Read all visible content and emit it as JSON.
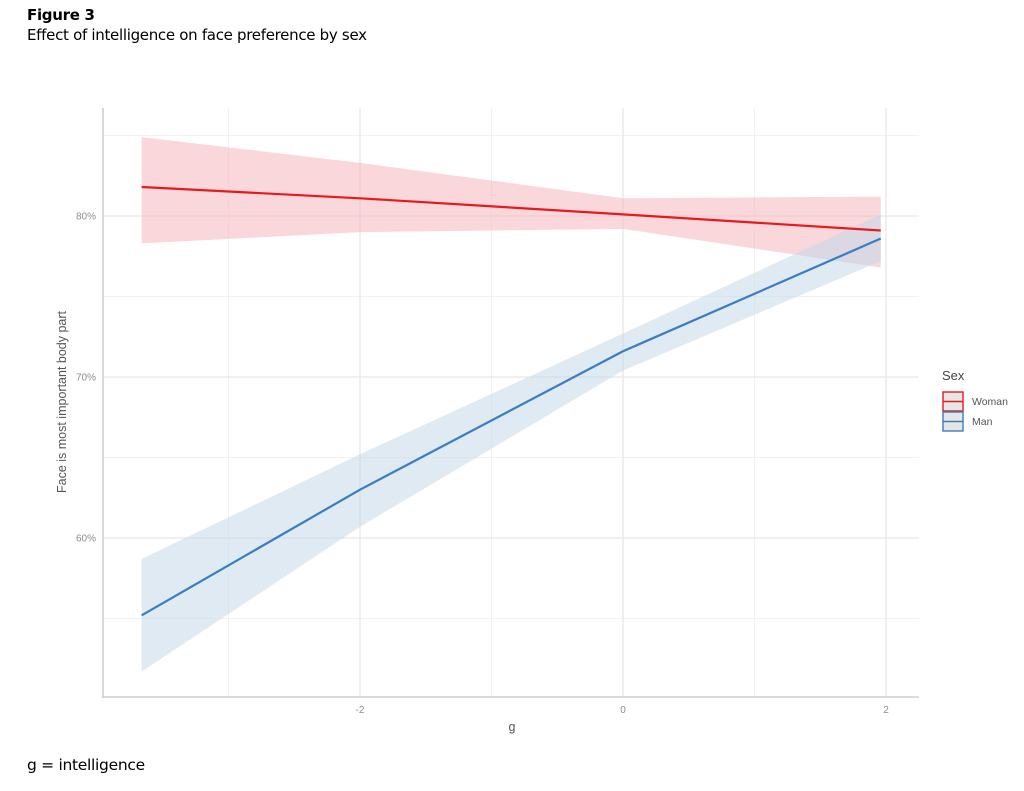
{
  "figure": {
    "label": "Figure 3",
    "title": "Effect of intelligence on face preference by sex",
    "footnote": "g = intelligence"
  },
  "chart_data": {
    "type": "line",
    "title": "Effect of intelligence on face preference by sex",
    "xlabel": "g",
    "ylabel": "Face is most important body part",
    "xlim": [
      -4.0,
      2.25
    ],
    "ylim": [
      50.0,
      88.0
    ],
    "x_ticks": [
      -2,
      0,
      2
    ],
    "x_tick_labels": [
      "-2",
      "0",
      "2"
    ],
    "x_minor_ticks": [
      -3,
      -1,
      1
    ],
    "y_ticks": [
      60,
      70,
      80
    ],
    "y_tick_labels": [
      "60%",
      "70%",
      "80%"
    ],
    "y_minor_ticks": [
      55,
      65,
      75,
      85
    ],
    "grid": true,
    "legend": {
      "title": "Sex",
      "position": "right",
      "entries": [
        "Woman",
        "Man"
      ]
    },
    "x": [
      -3.66,
      -2,
      0,
      1.96
    ],
    "series": [
      {
        "name": "Woman",
        "color": "#e41a1c",
        "fill": "#f4b6bd",
        "values": [
          81.8,
          81.1,
          80.1,
          79.1
        ],
        "ci_upper": [
          84.9,
          83.3,
          81.1,
          81.2
        ],
        "ci_lower": [
          78.3,
          79.0,
          79.2,
          76.8
        ]
      },
      {
        "name": "Man",
        "color": "#3a7dc0",
        "fill": "#c5d9ea",
        "values": [
          55.2,
          63.0,
          71.6,
          78.6
        ],
        "ci_upper": [
          58.7,
          65.2,
          72.7,
          80.1
        ],
        "ci_lower": [
          51.7,
          60.7,
          70.4,
          77.2
        ]
      }
    ]
  }
}
